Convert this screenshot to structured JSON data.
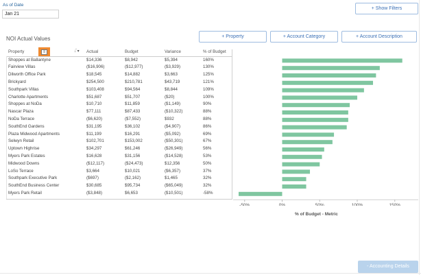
{
  "as_of": {
    "label": "As of Date",
    "value": "Jan 21"
  },
  "buttons": {
    "show_filters": "+ Show Filters",
    "property": "+ Property",
    "account_category": "+ Account Category",
    "account_description": "+ Account Description",
    "accounting_details": "- Accounting Details"
  },
  "section_title": "NOI Actual Values",
  "columns": {
    "property": "Property",
    "actual": "Actual",
    "budget": "Budget",
    "variance": "Variance",
    "pct_budget": "% of Budget"
  },
  "icons": {
    "sort": "sort-icon",
    "sort_descending": "sort-descending-icon"
  },
  "colors": {
    "bar": "#7fc6a0",
    "button_text": "#3a6fb5",
    "highlight": "#f08a30"
  },
  "rows": [
    {
      "property": "Shoppes at Ballantyne",
      "actual": "$14,336",
      "budget": "$8,942",
      "variance": "$5,394",
      "pct": "160%"
    },
    {
      "property": "Fairview Villas",
      "actual": "($16,906)",
      "budget": "($12,977)",
      "variance": "($3,929)",
      "pct": "130%"
    },
    {
      "property": "Dilworth Office Park",
      "actual": "$18,545",
      "budget": "$14,882",
      "variance": "$3,663",
      "pct": "125%"
    },
    {
      "property": "Brickyard",
      "actual": "$254,500",
      "budget": "$210,781",
      "variance": "$43,719",
      "pct": "121%"
    },
    {
      "property": "Southpark Villas",
      "actual": "$103,408",
      "budget": "$94,564",
      "variance": "$8,844",
      "pct": "109%"
    },
    {
      "property": "Charlotte Apartments",
      "actual": "$51,687",
      "budget": "$51,707",
      "variance": "($20)",
      "pct": "100%"
    },
    {
      "property": "Shoppes at NoDa",
      "actual": "$10,710",
      "budget": "$11,859",
      "variance": "($1,149)",
      "pct": "90%"
    },
    {
      "property": "Nascar Plaza",
      "actual": "$77,111",
      "budget": "$87,433",
      "variance": "($10,322)",
      "pct": "88%"
    },
    {
      "property": "NoDa Terrace",
      "actual": "($6,620)",
      "budget": "($7,552)",
      "variance": "$932",
      "pct": "88%"
    },
    {
      "property": "SouthEnd Gardens",
      "actual": "$31,195",
      "budget": "$36,102",
      "variance": "($4,907)",
      "pct": "86%"
    },
    {
      "property": "Plaza Midwood Apartments",
      "actual": "$11,199",
      "budget": "$16,291",
      "variance": "($5,092)",
      "pct": "69%"
    },
    {
      "property": "Selwyn Retail",
      "actual": "$102,701",
      "budget": "$153,002",
      "variance": "($50,301)",
      "pct": "67%"
    },
    {
      "property": "Uptown Highrise",
      "actual": "$34,297",
      "budget": "$61,246",
      "variance": "($26,949)",
      "pct": "56%"
    },
    {
      "property": "Myers Park Estates",
      "actual": "$16,628",
      "budget": "$31,156",
      "variance": "($14,528)",
      "pct": "53%"
    },
    {
      "property": "Midwood Downs",
      "actual": "($12,117)",
      "budget": "($24,473)",
      "variance": "$12,356",
      "pct": "50%"
    },
    {
      "property": "LoSo Terrace",
      "actual": "$3,664",
      "budget": "$10,021",
      "variance": "($6,357)",
      "pct": "37%"
    },
    {
      "property": "Southpark Executive Park",
      "actual": "($697)",
      "budget": "($2,162)",
      "variance": "$1,465",
      "pct": "32%"
    },
    {
      "property": "SouthEnd Business Center",
      "actual": "$30,685",
      "budget": "$95,734",
      "variance": "($65,049)",
      "pct": "32%"
    },
    {
      "property": "Myers Park Retail",
      "actual": "($3,848)",
      "budget": "$6,653",
      "variance": "($10,501)",
      "pct": "-58%"
    }
  ],
  "chart_data": {
    "type": "bar",
    "orientation": "horizontal",
    "categories": [
      "Shoppes at Ballantyne",
      "Fairview Villas",
      "Dilworth Office Park",
      "Brickyard",
      "Southpark Villas",
      "Charlotte Apartments",
      "Shoppes at NoDa",
      "Nascar Plaza",
      "NoDa Terrace",
      "SouthEnd Gardens",
      "Plaza Midwood Apartments",
      "Selwyn Retail",
      "Uptown Highrise",
      "Myers Park Estates",
      "Midwood Downs",
      "LoSo Terrace",
      "Southpark Executive Park",
      "SouthEnd Business Center",
      "Myers Park Retail"
    ],
    "values": [
      160,
      130,
      125,
      121,
      109,
      100,
      90,
      88,
      88,
      86,
      69,
      67,
      56,
      53,
      50,
      37,
      32,
      32,
      -58
    ],
    "xlabel": "% of Budget - Metric",
    "xticks": [
      "-50%",
      "0%",
      "50%",
      "100%",
      "150%"
    ],
    "xtick_values": [
      -50,
      0,
      50,
      100,
      150
    ],
    "xlim": [
      -58,
      163
    ],
    "grid": false
  }
}
